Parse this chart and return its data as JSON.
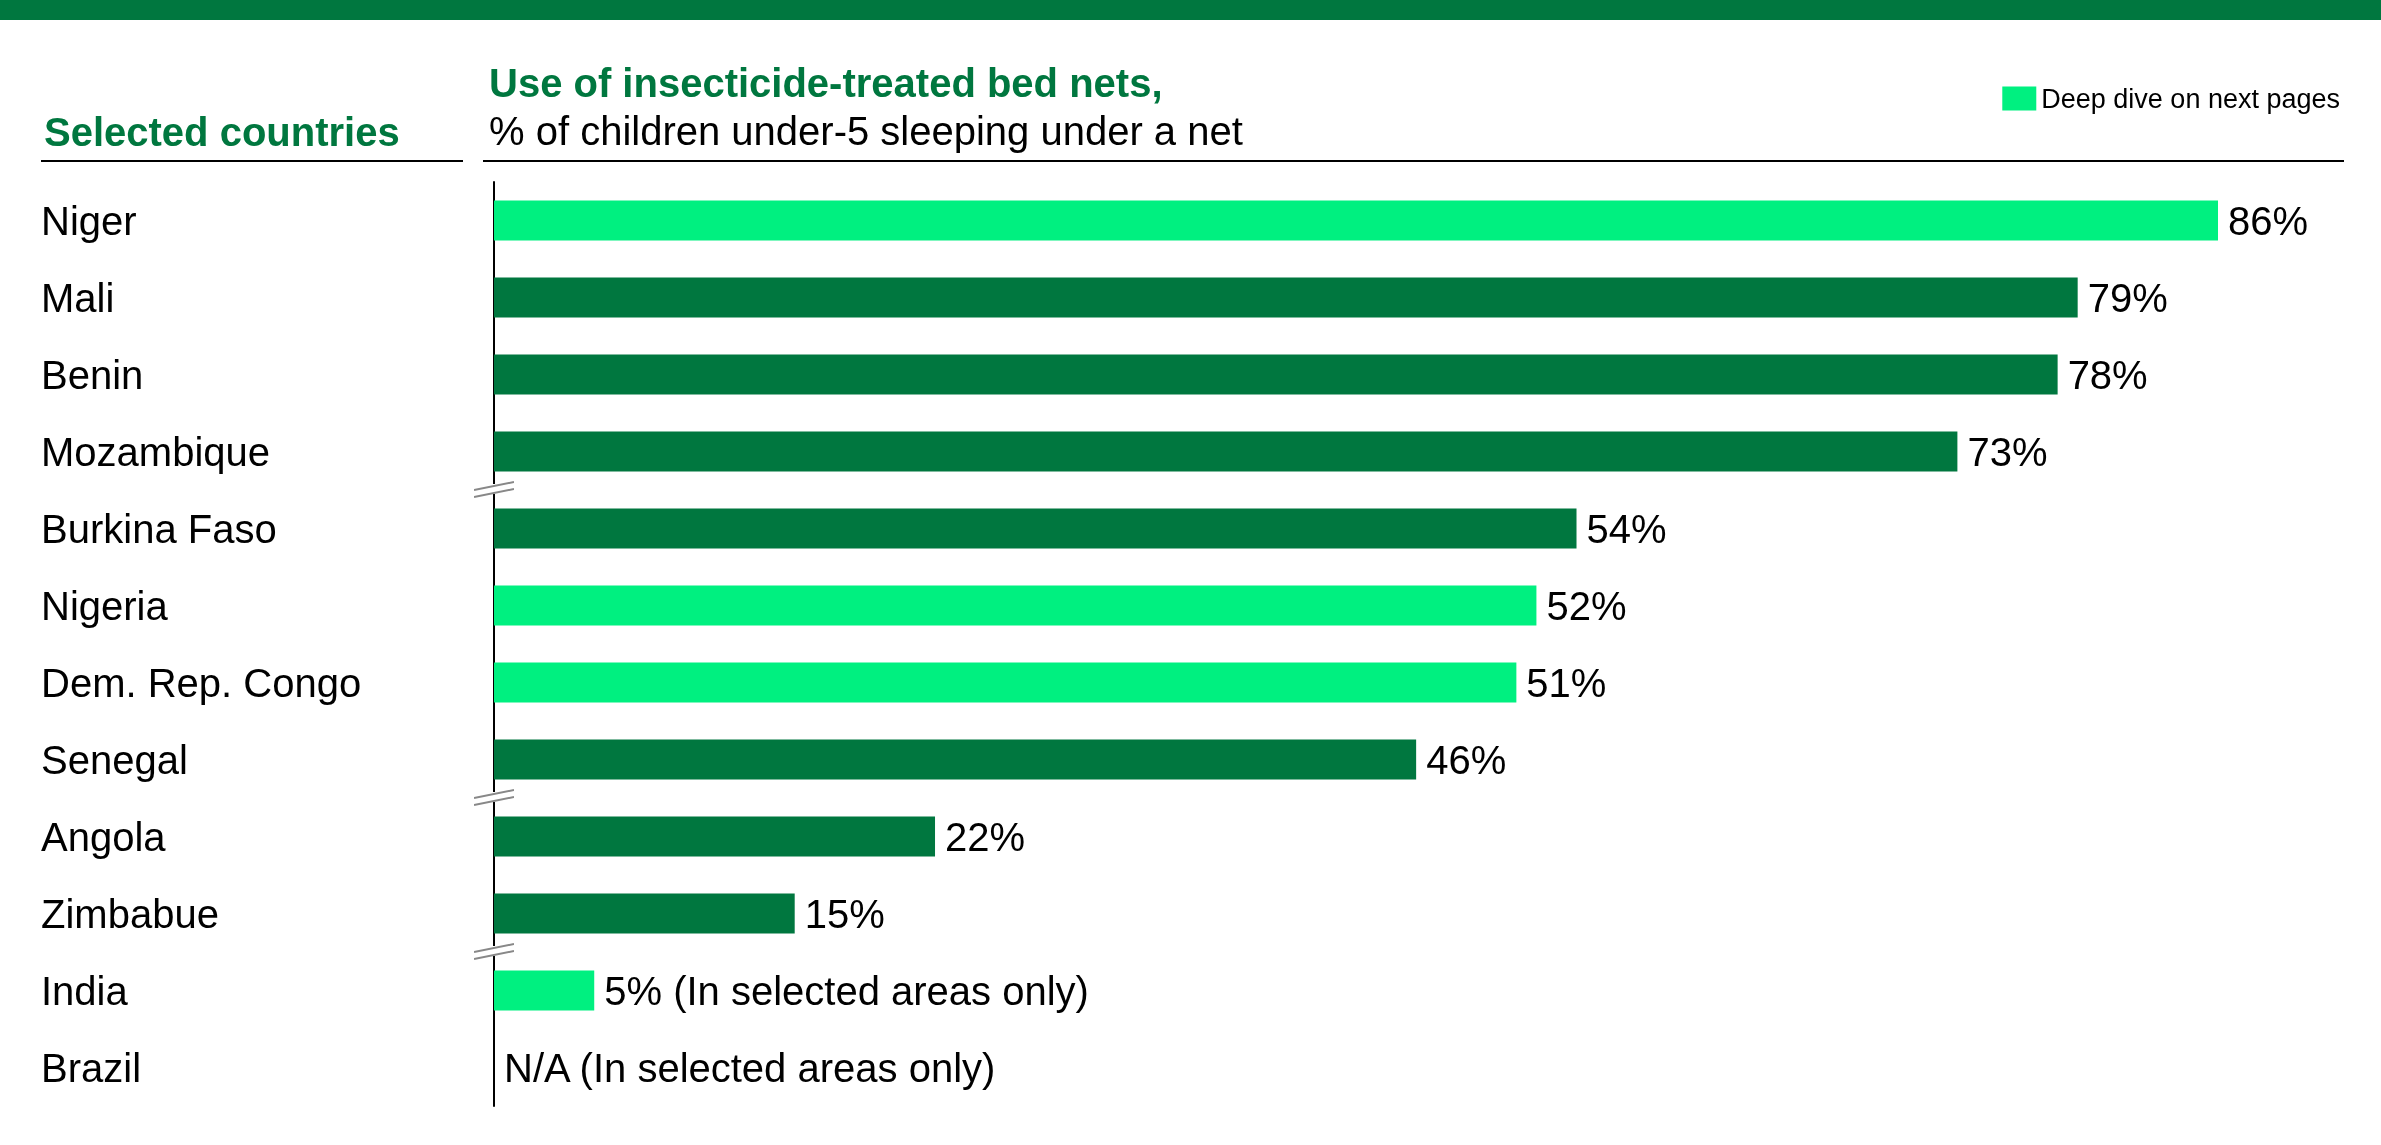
{
  "chart_data": {
    "type": "bar",
    "orientation": "horizontal",
    "stacked": true,
    "title": "Use of insecticide-treated bed nets,",
    "subtitle": "% of children under-5 sleeping under a net",
    "ylabel": "Selected countries",
    "categories": [
      "Niger",
      "Mali",
      "Benin",
      "Mozambique",
      "Burkina Faso",
      "Nigeria",
      "Dem. Rep. Congo",
      "Senegal",
      "Angola",
      "Zimbabue",
      "India",
      "Brazil"
    ],
    "series": [
      {
        "name": "Deep dive on next pages",
        "color": "#00f080",
        "values": [
          86,
          null,
          null,
          null,
          null,
          52,
          51,
          null,
          null,
          null,
          5,
          null
        ],
        "value_labels": [
          "86%",
          null,
          null,
          null,
          null,
          "52%",
          "51%",
          null,
          null,
          null,
          "5% (In selected areas only)",
          null
        ]
      },
      {
        "color": "#00773f",
        "values": [
          null,
          79,
          78,
          73,
          54,
          null,
          null,
          46,
          22,
          15,
          null,
          null
        ],
        "value_labels": [
          null,
          "79%",
          "78%",
          "73%",
          "54%",
          null,
          null,
          "46%",
          "22%",
          "15%",
          null,
          null
        ]
      }
    ],
    "annotations": [
      "N/A (In selected areas only)"
    ],
    "legend": "top right",
    "grid": false
  }
}
